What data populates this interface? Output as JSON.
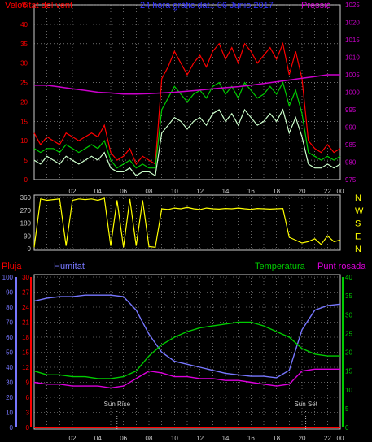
{
  "chart_data": [
    {
      "type": "line",
      "title": "24 hora gràfic dat.: 06 Junio 2017",
      "ylabel_left": "Velocitat del vent",
      "ylabel_right": "Pressió",
      "x_ticks": [
        "02",
        "04",
        "06",
        "08",
        "10",
        "12",
        "14",
        "16",
        "18",
        "20",
        "22",
        "00"
      ],
      "y_left_ticks": [
        "0",
        "5",
        "10",
        "15",
        "20",
        "25",
        "30",
        "35",
        "40",
        "45"
      ],
      "y_right_ticks": [
        "975",
        "980",
        "985",
        "990",
        "995",
        "1000",
        "1005",
        "1010",
        "1015",
        "1020",
        "1025"
      ],
      "ylim_left": [
        0,
        45
      ],
      "ylim_right": [
        975,
        1025
      ],
      "grid": true,
      "colors": {
        "gust": "#ff0000",
        "average": "#00cc00",
        "speed": "#ccffcc",
        "pressure": "#cc00cc"
      },
      "series": [
        {
          "axis": "left",
          "color": "#ff0000",
          "x": [
            0,
            0.5,
            1,
            1.5,
            2,
            2.5,
            3,
            3.5,
            4,
            4.5,
            5,
            5.5,
            6,
            6.5,
            7,
            7.5,
            8,
            8.5,
            9,
            9.5,
            10,
            10.5,
            11,
            11.5,
            12,
            12.5,
            13,
            13.5,
            14,
            14.5,
            15,
            15.5,
            16,
            16.5,
            17,
            17.5,
            18,
            18.5,
            19,
            19.5,
            20,
            20.5,
            21,
            21.5,
            22,
            22.5,
            23,
            23.5,
            24
          ],
          "values": [
            12,
            9,
            11,
            10,
            9,
            12,
            11,
            10,
            11,
            12,
            11,
            14,
            7,
            5,
            6,
            8,
            4,
            6,
            5,
            4,
            26,
            29,
            33,
            30,
            27,
            30,
            32,
            29,
            33,
            35,
            31,
            34,
            30,
            35,
            33,
            30,
            32,
            34,
            31,
            35,
            27,
            33,
            26,
            10,
            8,
            7,
            9,
            7,
            8
          ]
        },
        {
          "axis": "left",
          "color": "#00cc00",
          "x": [
            0,
            0.5,
            1,
            1.5,
            2,
            2.5,
            3,
            3.5,
            4,
            4.5,
            5,
            5.5,
            6,
            6.5,
            7,
            7.5,
            8,
            8.5,
            9,
            9.5,
            10,
            10.5,
            11,
            11.5,
            12,
            12.5,
            13,
            13.5,
            14,
            14.5,
            15,
            15.5,
            16,
            16.5,
            17,
            17.5,
            18,
            18.5,
            19,
            19.5,
            20,
            20.5,
            21,
            21.5,
            22,
            22.5,
            23,
            23.5,
            24
          ],
          "values": [
            8,
            7,
            8,
            8,
            7,
            9,
            8,
            7,
            8,
            9,
            8,
            10,
            5,
            3,
            4,
            5,
            3,
            4,
            3,
            3,
            18,
            21,
            24,
            22,
            20,
            22,
            23,
            21,
            24,
            25,
            22,
            24,
            21,
            25,
            23,
            21,
            22,
            24,
            22,
            25,
            19,
            23,
            17,
            7,
            6,
            5,
            6,
            5,
            6
          ]
        },
        {
          "axis": "left",
          "color": "#ccffcc",
          "x": [
            0,
            0.5,
            1,
            1.5,
            2,
            2.5,
            3,
            3.5,
            4,
            4.5,
            5,
            5.5,
            6,
            6.5,
            7,
            7.5,
            8,
            8.5,
            9,
            9.5,
            10,
            10.5,
            11,
            11.5,
            12,
            12.5,
            13,
            13.5,
            14,
            14.5,
            15,
            15.5,
            16,
            16.5,
            17,
            17.5,
            18,
            18.5,
            19,
            19.5,
            20,
            20.5,
            21,
            21.5,
            22,
            22.5,
            23,
            23.5,
            24
          ],
          "values": [
            5,
            4,
            6,
            5,
            4,
            6,
            5,
            4,
            5,
            6,
            5,
            7,
            3,
            2,
            2,
            3,
            1,
            2,
            2,
            1,
            12,
            14,
            16,
            15,
            13,
            15,
            16,
            14,
            17,
            18,
            15,
            17,
            14,
            18,
            16,
            14,
            15,
            17,
            15,
            18,
            12,
            16,
            11,
            4,
            3,
            3,
            4,
            3,
            4
          ]
        },
        {
          "axis": "right",
          "color": "#cc00cc",
          "x": [
            0,
            1,
            2,
            3,
            4,
            5,
            6,
            7,
            8,
            9,
            10,
            11,
            12,
            13,
            14,
            15,
            16,
            17,
            18,
            19,
            20,
            21,
            22,
            23,
            24
          ],
          "values": [
            1002,
            1002,
            1001.5,
            1001,
            1000.5,
            1000,
            999.8,
            999.5,
            999.5,
            999.6,
            999.8,
            1000,
            1000.3,
            1000.6,
            1001,
            1001.3,
            1001.6,
            1002,
            1002.5,
            1003,
            1003.5,
            1004,
            1004.5,
            1005,
            1005
          ]
        }
      ]
    },
    {
      "type": "line",
      "y_ticks": [
        "0",
        "90",
        "180",
        "270",
        "360"
      ],
      "ylim": [
        0,
        360
      ],
      "compass_labels": [
        "N",
        "W",
        "S",
        "E",
        "N"
      ],
      "colors": {
        "direction": "#ffff00"
      },
      "series": [
        {
          "color": "#ffff00",
          "x": [
            0,
            0.5,
            1,
            1.5,
            2,
            2.5,
            3,
            3.5,
            4,
            4.5,
            5,
            5.5,
            6,
            6.5,
            7,
            7.5,
            8,
            8.5,
            9,
            9.5,
            10,
            10.5,
            11,
            11.5,
            12,
            12.5,
            13,
            13.5,
            14,
            14.5,
            15,
            15.5,
            16,
            16.5,
            17,
            17.5,
            18,
            18.5,
            19,
            19.5,
            20,
            20.5,
            21,
            21.5,
            22,
            22.5,
            23,
            23.5,
            24
          ],
          "values": [
            10,
            350,
            340,
            345,
            350,
            20,
            340,
            350,
            345,
            350,
            340,
            355,
            20,
            340,
            10,
            350,
            20,
            340,
            15,
            10,
            280,
            275,
            285,
            280,
            290,
            280,
            275,
            285,
            280,
            278,
            282,
            280,
            285,
            280,
            276,
            282,
            280,
            278,
            280,
            282,
            80,
            60,
            40,
            50,
            70,
            30,
            90,
            50,
            60
          ]
        }
      ]
    },
    {
      "type": "line",
      "legend": [
        "Pluja",
        "Humitat",
        "Temperatura",
        "Punt rosada"
      ],
      "x_ticks": [
        "02",
        "04",
        "06",
        "08",
        "10",
        "12",
        "14",
        "16",
        "18",
        "20",
        "22",
        "00"
      ],
      "y_left_ticks_humidity": [
        "0",
        "10",
        "20",
        "30",
        "40",
        "50",
        "60",
        "70",
        "80",
        "90",
        "100"
      ],
      "y_left_ticks_rain": [
        "0",
        "3",
        "6",
        "9",
        "12",
        "15",
        "18",
        "21",
        "24",
        "27",
        "30"
      ],
      "y_right_ticks": [
        "0",
        "5",
        "10",
        "15",
        "20",
        "25",
        "30",
        "35",
        "40"
      ],
      "ylim_humidity": [
        0,
        100
      ],
      "ylim_rain": [
        0,
        30
      ],
      "ylim_right": [
        0,
        40
      ],
      "annotations": [
        "Sun Rise",
        "Sun Set"
      ],
      "grid": true,
      "colors": {
        "rain": "#ff0000",
        "humidity": "#7777ff",
        "temperature": "#00cc00",
        "dew_point": "#dd00dd"
      },
      "series": [
        {
          "axis": "humidity",
          "color": "#7777ff",
          "x": [
            0,
            1,
            2,
            3,
            4,
            5,
            6,
            7,
            8,
            9,
            10,
            11,
            12,
            13,
            14,
            15,
            16,
            17,
            18,
            19,
            20,
            21,
            22,
            23,
            24
          ],
          "values": [
            84,
            86,
            87,
            87,
            88,
            88,
            88,
            87,
            78,
            62,
            50,
            44,
            42,
            40,
            38,
            36,
            35,
            34,
            34,
            33,
            38,
            65,
            78,
            81,
            82
          ]
        },
        {
          "axis": "right",
          "color": "#00cc00",
          "x": [
            0,
            1,
            2,
            3,
            4,
            5,
            6,
            7,
            8,
            9,
            10,
            11,
            12,
            13,
            14,
            15,
            16,
            17,
            18,
            19,
            20,
            21,
            22,
            23,
            24
          ],
          "values": [
            15,
            14,
            14,
            13.5,
            13.5,
            13,
            13,
            13.5,
            15,
            19,
            22,
            24,
            25.5,
            26.5,
            27,
            27.5,
            28,
            28,
            27,
            25.5,
            24,
            21,
            19.5,
            19,
            19
          ]
        },
        {
          "axis": "right",
          "color": "#dd00dd",
          "x": [
            0,
            1,
            2,
            3,
            4,
            5,
            6,
            7,
            8,
            9,
            10,
            11,
            12,
            13,
            14,
            15,
            16,
            17,
            18,
            19,
            20,
            21,
            22,
            23,
            24
          ],
          "values": [
            12,
            11.5,
            11.5,
            11,
            11,
            11,
            10.5,
            11,
            13,
            15,
            14.5,
            13.5,
            13.5,
            13,
            13,
            12.5,
            12.5,
            12,
            11.5,
            11,
            11.5,
            15,
            15.5,
            15.5,
            15.5
          ]
        },
        {
          "axis": "rain",
          "color": "#ff0000",
          "x": [
            0,
            24
          ],
          "values": [
            0,
            0
          ]
        }
      ],
      "sun_rise_x": 6.5,
      "sun_set_x": 21.3
    }
  ]
}
